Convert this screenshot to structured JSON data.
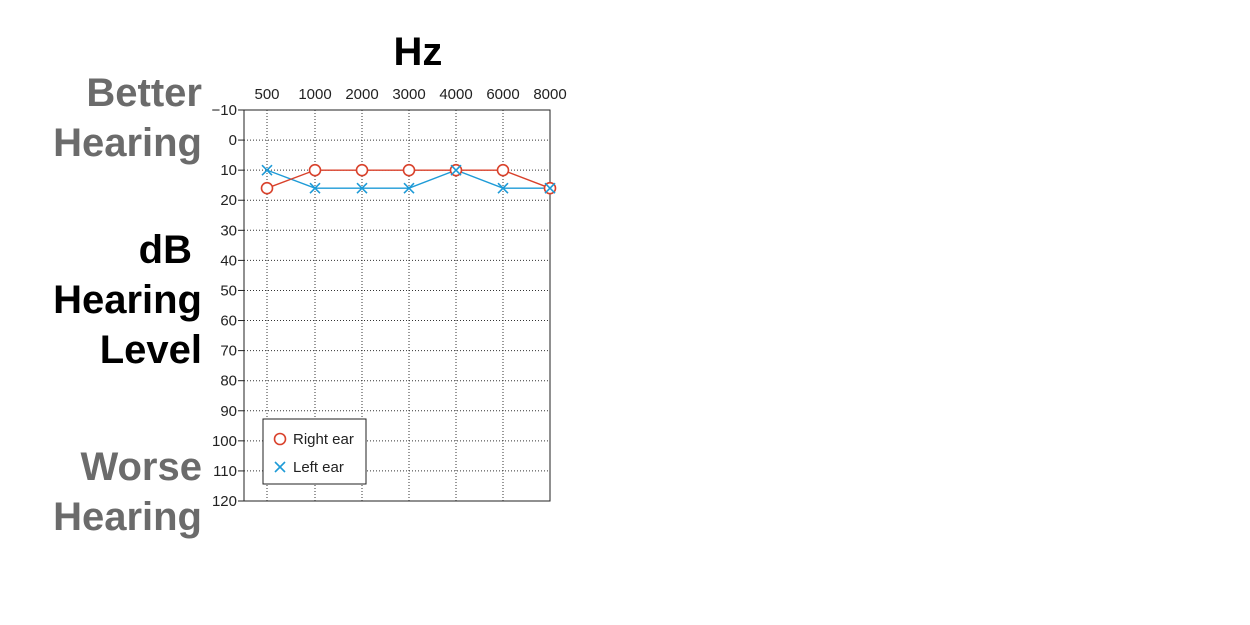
{
  "labels": {
    "better": [
      "Better",
      "Hearing"
    ],
    "level": [
      "dB",
      "Hearing",
      "Level"
    ],
    "worse": [
      "Worse",
      "Hearing"
    ]
  },
  "chart_data": {
    "type": "line",
    "title": "Hz",
    "xlabel": "Hz",
    "ylabel": "dB Hearing Level",
    "categories": [
      "500",
      "1000",
      "2000",
      "3000",
      "4000",
      "6000",
      "8000"
    ],
    "yticks": [
      "−10",
      "0",
      "10",
      "20",
      "30",
      "40",
      "50",
      "60",
      "70",
      "80",
      "90",
      "100",
      "110",
      "120"
    ],
    "ylim": [
      -10,
      120
    ],
    "y_inverted": true,
    "grid": true,
    "legend_position": "bottom-left",
    "series": [
      {
        "name": "Right ear",
        "marker": "circle",
        "color": "#d9412b",
        "values": [
          16,
          10,
          10,
          10,
          10,
          10,
          16
        ]
      },
      {
        "name": "Left ear",
        "marker": "cross",
        "color": "#1e9bd7",
        "values": [
          10,
          16,
          16,
          16,
          10,
          16,
          16
        ]
      }
    ]
  }
}
